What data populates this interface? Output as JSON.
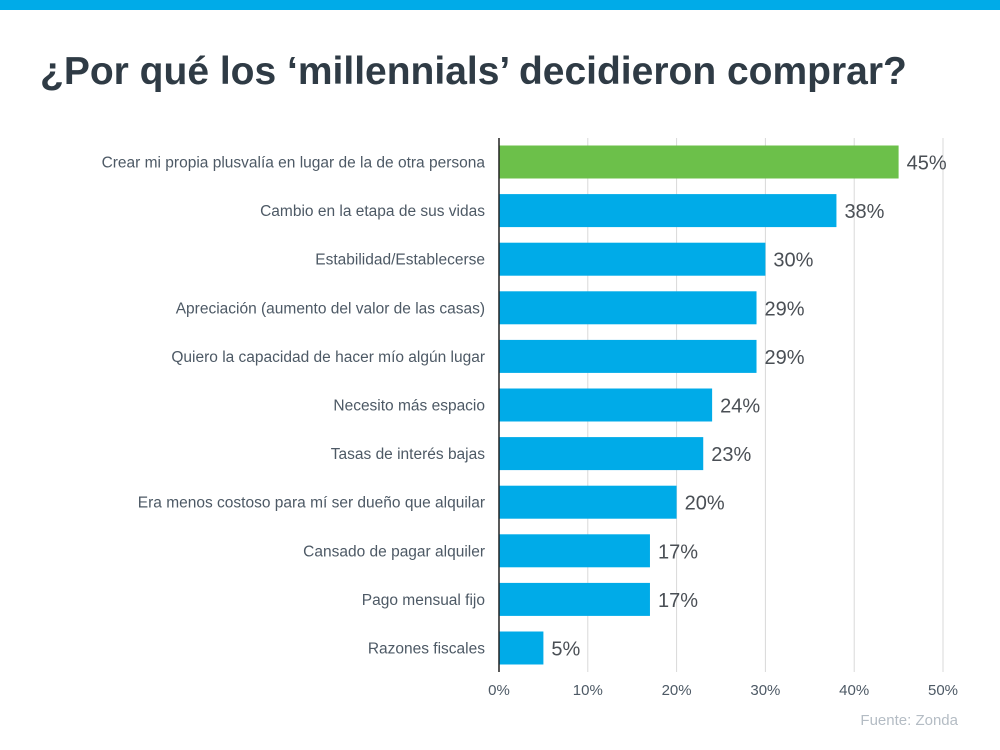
{
  "title": "¿Por qué los ‘millennials’ decidieron comprar?",
  "source": "Fuente: Zonda",
  "colors": {
    "top_bar": "#00abe8",
    "bar": "#00abe8",
    "highlight": "#6cc04a",
    "gridline": "#d9d9d9",
    "axis": "#222222"
  },
  "chart_data": {
    "type": "bar",
    "orientation": "horizontal",
    "categories": [
      "Crear mi propia plusvalía en lugar de la de otra persona",
      "Cambio en la etapa de sus vidas",
      "Estabilidad/Establecerse",
      "Apreciación (aumento del valor de las casas)",
      "Quiero la capacidad de hacer mío algún lugar",
      "Necesito más espacio",
      "Tasas de interés bajas",
      "Era menos costoso para mí ser dueño que alquilar",
      "Cansado de pagar alquiler",
      "Pago mensual fijo",
      "Razones fiscales"
    ],
    "values": [
      45,
      38,
      30,
      29,
      29,
      24,
      23,
      20,
      17,
      17,
      5
    ],
    "value_labels": [
      "45%",
      "38%",
      "30%",
      "29%",
      "29%",
      "24%",
      "23%",
      "20%",
      "17%",
      "17%",
      "5%"
    ],
    "highlighted_index": 0,
    "xlim": [
      0,
      50
    ],
    "x_ticks": [
      0,
      10,
      20,
      30,
      40,
      50
    ],
    "x_tick_labels": [
      "0%",
      "10%",
      "20%",
      "30%",
      "40%",
      "50%"
    ],
    "grid": "vertical"
  }
}
